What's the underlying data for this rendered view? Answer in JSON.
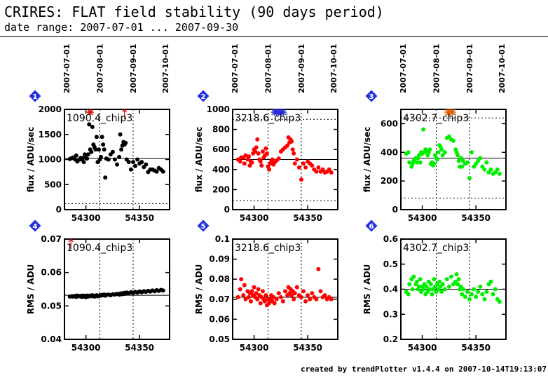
{
  "header": {
    "title": "CRIRES: FLAT field stability (90 days period)",
    "date_range": "date range: 2007-07-01 ... 2007-09-30"
  },
  "footer": "created by trendPlotter v1.4.4 on 2007-10-14T19:13:07",
  "date_ticks": {
    "labels": [
      "2007-07-01",
      "2007-08-01",
      "2007-09-01",
      "2007-10-01"
    ],
    "mjd": [
      54282,
      54313,
      54344,
      54374
    ]
  },
  "chart_data": [
    {
      "type": "scatter",
      "badge": "1",
      "color": "#000000",
      "label": "1090.4_chip3",
      "ylabel": "flux / ADU/sec",
      "xlim": [
        54280,
        54378
      ],
      "ylim": [
        0,
        2000
      ],
      "yticks": [
        0,
        500,
        1000,
        1500,
        2000
      ],
      "xticks": [
        54300,
        54350
      ],
      "reference_line": 1020,
      "lower_dotted": 120,
      "series": [
        {
          "x": [
            54285,
            54287,
            54288,
            54290,
            54291,
            54292,
            54294,
            54295,
            54296,
            54297,
            54298,
            54299,
            54300,
            54301,
            54302,
            54303,
            54304,
            54305,
            54306,
            54307,
            54308,
            54309,
            54310,
            54311,
            54312,
            54313,
            54314,
            54315,
            54316,
            54317,
            54318,
            54319,
            54321,
            54323,
            54325,
            54327,
            54329,
            54331,
            54332,
            54333,
            54334,
            54335,
            54336,
            54337,
            54338,
            54340,
            54342,
            54344,
            54346,
            54348,
            54350,
            54352,
            54354,
            54356,
            54358,
            54360,
            54362,
            54364,
            54366,
            54368,
            54370,
            54372
          ],
          "y": [
            1010,
            1030,
            1040,
            1000,
            1080,
            960,
            1000,
            1030,
            1000,
            1030,
            950,
            1100,
            1030,
            1020,
            1100,
            1700,
            1200,
            1150,
            1650,
            1300,
            1250,
            1200,
            1450,
            950,
            1200,
            1000,
            1050,
            1450,
            1300,
            1200,
            640,
            1020,
            1000,
            1100,
            1150,
            1000,
            900,
            1050,
            1500,
            1200,
            1280,
            1350,
            1300,
            1330,
            1000,
            950,
            800,
            950,
            870,
            1000,
            920,
            950,
            850,
            900,
            750,
            800,
            800,
            780,
            760,
            830,
            800,
            760
          ]
        }
      ],
      "overflow_markers": [
        {
          "x": 54304,
          "kind": "star",
          "color": "#e00000"
        },
        {
          "x": 54336,
          "kind": "arrow",
          "color": "#e00000"
        }
      ]
    },
    {
      "type": "scatter",
      "badge": "2",
      "color": "#ff0000",
      "label": "3218.6_chip3",
      "ylabel": "flux / ADU/sec",
      "xlim": [
        54280,
        54378
      ],
      "ylim": [
        0,
        1000
      ],
      "yticks": [
        0,
        200,
        400,
        600,
        800,
        1000
      ],
      "xticks": [
        54300,
        54350
      ],
      "reference_line": 500,
      "upper_dotted": 900,
      "lower_dotted": 90,
      "series": [
        {
          "x": [
            54285,
            54287,
            54288,
            54290,
            54291,
            54292,
            54294,
            54295,
            54296,
            54297,
            54298,
            54299,
            54300,
            54301,
            54302,
            54303,
            54304,
            54305,
            54306,
            54307,
            54308,
            54309,
            54310,
            54311,
            54312,
            54313,
            54314,
            54315,
            54316,
            54317,
            54318,
            54319,
            54321,
            54323,
            54325,
            54327,
            54329,
            54331,
            54332,
            54333,
            54334,
            54335,
            54336,
            54337,
            54338,
            54340,
            54342,
            54344,
            54346,
            54348,
            54350,
            54352,
            54354,
            54356,
            54358,
            54360,
            54362,
            54364,
            54366,
            54368,
            54370,
            54372
          ],
          "y": [
            500,
            480,
            520,
            520,
            460,
            540,
            500,
            530,
            440,
            480,
            470,
            560,
            600,
            580,
            620,
            700,
            560,
            500,
            480,
            440,
            580,
            520,
            540,
            610,
            560,
            430,
            400,
            460,
            480,
            500,
            450,
            470,
            490,
            510,
            580,
            600,
            620,
            640,
            720,
            670,
            700,
            680,
            600,
            560,
            460,
            500,
            420,
            300,
            460,
            420,
            480,
            460,
            440,
            400,
            380,
            420,
            380,
            400,
            370,
            380,
            400,
            370
          ]
        }
      ],
      "overflow_markers": [
        {
          "x": 54319,
          "kind": "star",
          "color": "#2b2bd8"
        },
        {
          "x": 54321,
          "kind": "star",
          "color": "#2b2bd8"
        },
        {
          "x": 54323,
          "kind": "star",
          "color": "#2b2bd8"
        },
        {
          "x": 54325,
          "kind": "star",
          "color": "#2b2bd8"
        },
        {
          "x": 54327,
          "kind": "star",
          "color": "#2b2bd8"
        }
      ]
    },
    {
      "type": "scatter",
      "badge": "3",
      "color": "#00ee00",
      "label": "4302.7_chip3",
      "ylabel": "flux / ADU/sec",
      "xlim": [
        54280,
        54378
      ],
      "ylim": [
        0,
        700
      ],
      "yticks": [
        0,
        200,
        400,
        600
      ],
      "xticks": [
        54300,
        54350
      ],
      "reference_line": 360,
      "upper_dotted": 640,
      "lower_dotted": 80,
      "series": [
        {
          "x": [
            54285,
            54287,
            54288,
            54290,
            54291,
            54292,
            54294,
            54295,
            54296,
            54297,
            54298,
            54299,
            54300,
            54301,
            54302,
            54303,
            54304,
            54305,
            54306,
            54307,
            54308,
            54309,
            54310,
            54311,
            54312,
            54313,
            54314,
            54315,
            54316,
            54317,
            54318,
            54319,
            54321,
            54323,
            54325,
            54327,
            54329,
            54331,
            54332,
            54333,
            54334,
            54335,
            54336,
            54337,
            54338,
            54340,
            54342,
            54344,
            54346,
            54348,
            54350,
            54352,
            54354,
            54356,
            54358,
            54360,
            54362,
            54364,
            54366,
            54368,
            54370,
            54372
          ],
          "y": [
            390,
            400,
            330,
            300,
            320,
            340,
            360,
            330,
            360,
            380,
            330,
            400,
            390,
            560,
            400,
            420,
            410,
            380,
            400,
            420,
            320,
            330,
            310,
            320,
            380,
            360,
            350,
            400,
            450,
            440,
            420,
            380,
            400,
            500,
            510,
            490,
            480,
            420,
            400,
            380,
            340,
            300,
            360,
            300,
            340,
            320,
            330,
            220,
            400,
            300,
            320,
            340,
            360,
            300,
            280,
            330,
            260,
            280,
            250,
            260,
            280,
            250
          ]
        }
      ],
      "overflow_markers": [
        {
          "x": 54324,
          "kind": "star",
          "color": "#e06000"
        },
        {
          "x": 54326,
          "kind": "star",
          "color": "#e06000"
        },
        {
          "x": 54328,
          "kind": "star",
          "color": "#e06000"
        }
      ]
    },
    {
      "type": "scatter",
      "badge": "4",
      "color": "#000000",
      "label": "1090.4_chip3",
      "ylabel": "RMS / ADU",
      "xlim": [
        54280,
        54378
      ],
      "ylim": [
        0.04,
        0.07
      ],
      "yticks": [
        0.04,
        0.05,
        0.06,
        0.07
      ],
      "xticks": [
        54300,
        54350
      ],
      "reference_line": 0.0532,
      "series": [
        {
          "x": [
            54285,
            54287,
            54288,
            54290,
            54291,
            54292,
            54294,
            54295,
            54296,
            54297,
            54298,
            54299,
            54300,
            54301,
            54302,
            54303,
            54304,
            54305,
            54306,
            54307,
            54308,
            54309,
            54310,
            54311,
            54312,
            54313,
            54314,
            54315,
            54316,
            54317,
            54318,
            54319,
            54321,
            54323,
            54325,
            54327,
            54329,
            54331,
            54332,
            54333,
            54334,
            54335,
            54336,
            54337,
            54338,
            54340,
            54342,
            54344,
            54346,
            54348,
            54350,
            54352,
            54354,
            54356,
            54358,
            54360,
            54362,
            54364,
            54366,
            54368,
            54370,
            54372
          ],
          "y": [
            0.0528,
            0.0529,
            0.0528,
            0.053,
            0.0527,
            0.0531,
            0.0529,
            0.053,
            0.0527,
            0.0531,
            0.0528,
            0.053,
            0.0526,
            0.0531,
            0.0528,
            0.053,
            0.0531,
            0.0529,
            0.0532,
            0.053,
            0.0528,
            0.0531,
            0.0532,
            0.0529,
            0.053,
            0.0532,
            0.0531,
            0.0533,
            0.0532,
            0.0534,
            0.0531,
            0.0533,
            0.0534,
            0.0532,
            0.0535,
            0.0534,
            0.0536,
            0.0534,
            0.0537,
            0.0535,
            0.0538,
            0.0536,
            0.0539,
            0.0537,
            0.054,
            0.0538,
            0.0541,
            0.0539,
            0.0542,
            0.054,
            0.0543,
            0.0541,
            0.0544,
            0.0542,
            0.0545,
            0.0543,
            0.0546,
            0.0544,
            0.0547,
            0.0545,
            0.0548,
            0.0546
          ]
        }
      ],
      "overflow_markers": [
        {
          "x": 54286,
          "kind": "arrow",
          "color": "#e00000"
        }
      ]
    },
    {
      "type": "scatter",
      "badge": "5",
      "color": "#ff0000",
      "label": "3218.6_chip3",
      "ylabel": "RMS / ADU",
      "xlim": [
        54280,
        54378
      ],
      "ylim": [
        0.05,
        0.1
      ],
      "yticks": [
        0.05,
        0.06,
        0.07,
        0.08,
        0.09,
        0.1
      ],
      "xticks": [
        54300,
        54350
      ],
      "reference_line": 0.071,
      "series": [
        {
          "x": [
            54285,
            54287,
            54288,
            54290,
            54291,
            54292,
            54294,
            54295,
            54296,
            54297,
            54298,
            54299,
            54300,
            54301,
            54302,
            54303,
            54304,
            54305,
            54306,
            54307,
            54308,
            54309,
            54310,
            54311,
            54312,
            54313,
            54314,
            54315,
            54316,
            54317,
            54318,
            54319,
            54321,
            54323,
            54325,
            54327,
            54329,
            54331,
            54332,
            54333,
            54334,
            54335,
            54336,
            54337,
            54338,
            54340,
            54342,
            54344,
            54346,
            54348,
            54350,
            54352,
            54354,
            54356,
            54358,
            54360,
            54362,
            54364,
            54366,
            54368,
            54370,
            54372
          ],
          "y": [
            0.071,
            0.075,
            0.08,
            0.072,
            0.077,
            0.07,
            0.074,
            0.071,
            0.073,
            0.069,
            0.074,
            0.072,
            0.076,
            0.071,
            0.073,
            0.07,
            0.075,
            0.072,
            0.068,
            0.071,
            0.074,
            0.07,
            0.069,
            0.072,
            0.067,
            0.07,
            0.068,
            0.07,
            0.072,
            0.069,
            0.071,
            0.068,
            0.07,
            0.073,
            0.071,
            0.069,
            0.074,
            0.072,
            0.076,
            0.073,
            0.075,
            0.072,
            0.074,
            0.07,
            0.073,
            0.076,
            0.072,
            0.071,
            0.074,
            0.069,
            0.072,
            0.07,
            0.073,
            0.071,
            0.07,
            0.085,
            0.074,
            0.071,
            0.072,
            0.07,
            0.071,
            0.07
          ]
        }
      ],
      "overflow_markers": []
    },
    {
      "type": "scatter",
      "badge": "6",
      "color": "#00ee00",
      "label": "4302.7_chip3",
      "ylabel": "RMS / ADU",
      "xlim": [
        54280,
        54378
      ],
      "ylim": [
        0.2,
        0.6
      ],
      "yticks": [
        0.2,
        0.3,
        0.4,
        0.5,
        0.6
      ],
      "xticks": [
        54300,
        54350
      ],
      "reference_line": 0.4,
      "series": [
        {
          "x": [
            54285,
            54287,
            54288,
            54290,
            54291,
            54292,
            54294,
            54295,
            54296,
            54297,
            54298,
            54299,
            54300,
            54301,
            54302,
            54303,
            54304,
            54305,
            54306,
            54307,
            54308,
            54309,
            54310,
            54311,
            54312,
            54313,
            54314,
            54315,
            54316,
            54317,
            54318,
            54319,
            54321,
            54323,
            54325,
            54327,
            54329,
            54331,
            54332,
            54333,
            54334,
            54335,
            54336,
            54337,
            54338,
            54340,
            54342,
            54344,
            54346,
            54348,
            54350,
            54352,
            54354,
            54356,
            54358,
            54360,
            54362,
            54364,
            54366,
            54368,
            54370,
            54372
          ],
          "y": [
            0.39,
            0.38,
            0.42,
            0.44,
            0.4,
            0.45,
            0.42,
            0.43,
            0.4,
            0.41,
            0.44,
            0.39,
            0.41,
            0.4,
            0.42,
            0.38,
            0.41,
            0.39,
            0.43,
            0.4,
            0.42,
            0.38,
            0.4,
            0.44,
            0.41,
            0.39,
            0.42,
            0.4,
            0.43,
            0.41,
            0.39,
            0.42,
            0.4,
            0.44,
            0.41,
            0.45,
            0.42,
            0.43,
            0.46,
            0.42,
            0.44,
            0.4,
            0.41,
            0.38,
            0.4,
            0.37,
            0.39,
            0.36,
            0.38,
            0.4,
            0.37,
            0.39,
            0.41,
            0.38,
            0.36,
            0.39,
            0.42,
            0.43,
            0.38,
            0.4,
            0.36,
            0.35
          ]
        }
      ],
      "overflow_markers": []
    }
  ]
}
